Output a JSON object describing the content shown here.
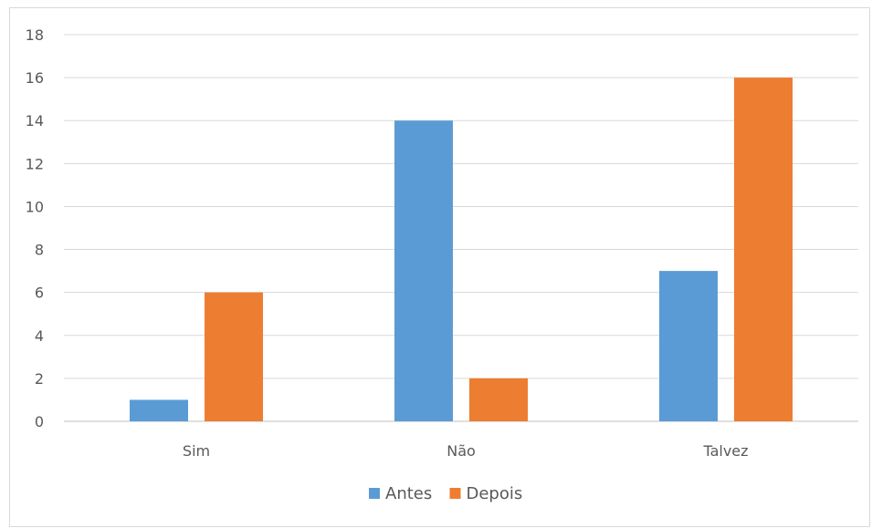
{
  "chart_data": {
    "type": "bar",
    "categories": [
      "Sim",
      "Não",
      "Talvez"
    ],
    "series": [
      {
        "name": "Antes",
        "values": [
          1,
          14,
          7
        ],
        "color": "#5b9bd5"
      },
      {
        "name": "Depois",
        "values": [
          6,
          2,
          16
        ],
        "color": "#ed7d31"
      }
    ],
    "ylim": [
      0,
      18
    ],
    "yticks": [
      0,
      2,
      4,
      6,
      8,
      10,
      12,
      14,
      16,
      18
    ],
    "grid": true,
    "legend_position": "bottom",
    "title": ""
  }
}
